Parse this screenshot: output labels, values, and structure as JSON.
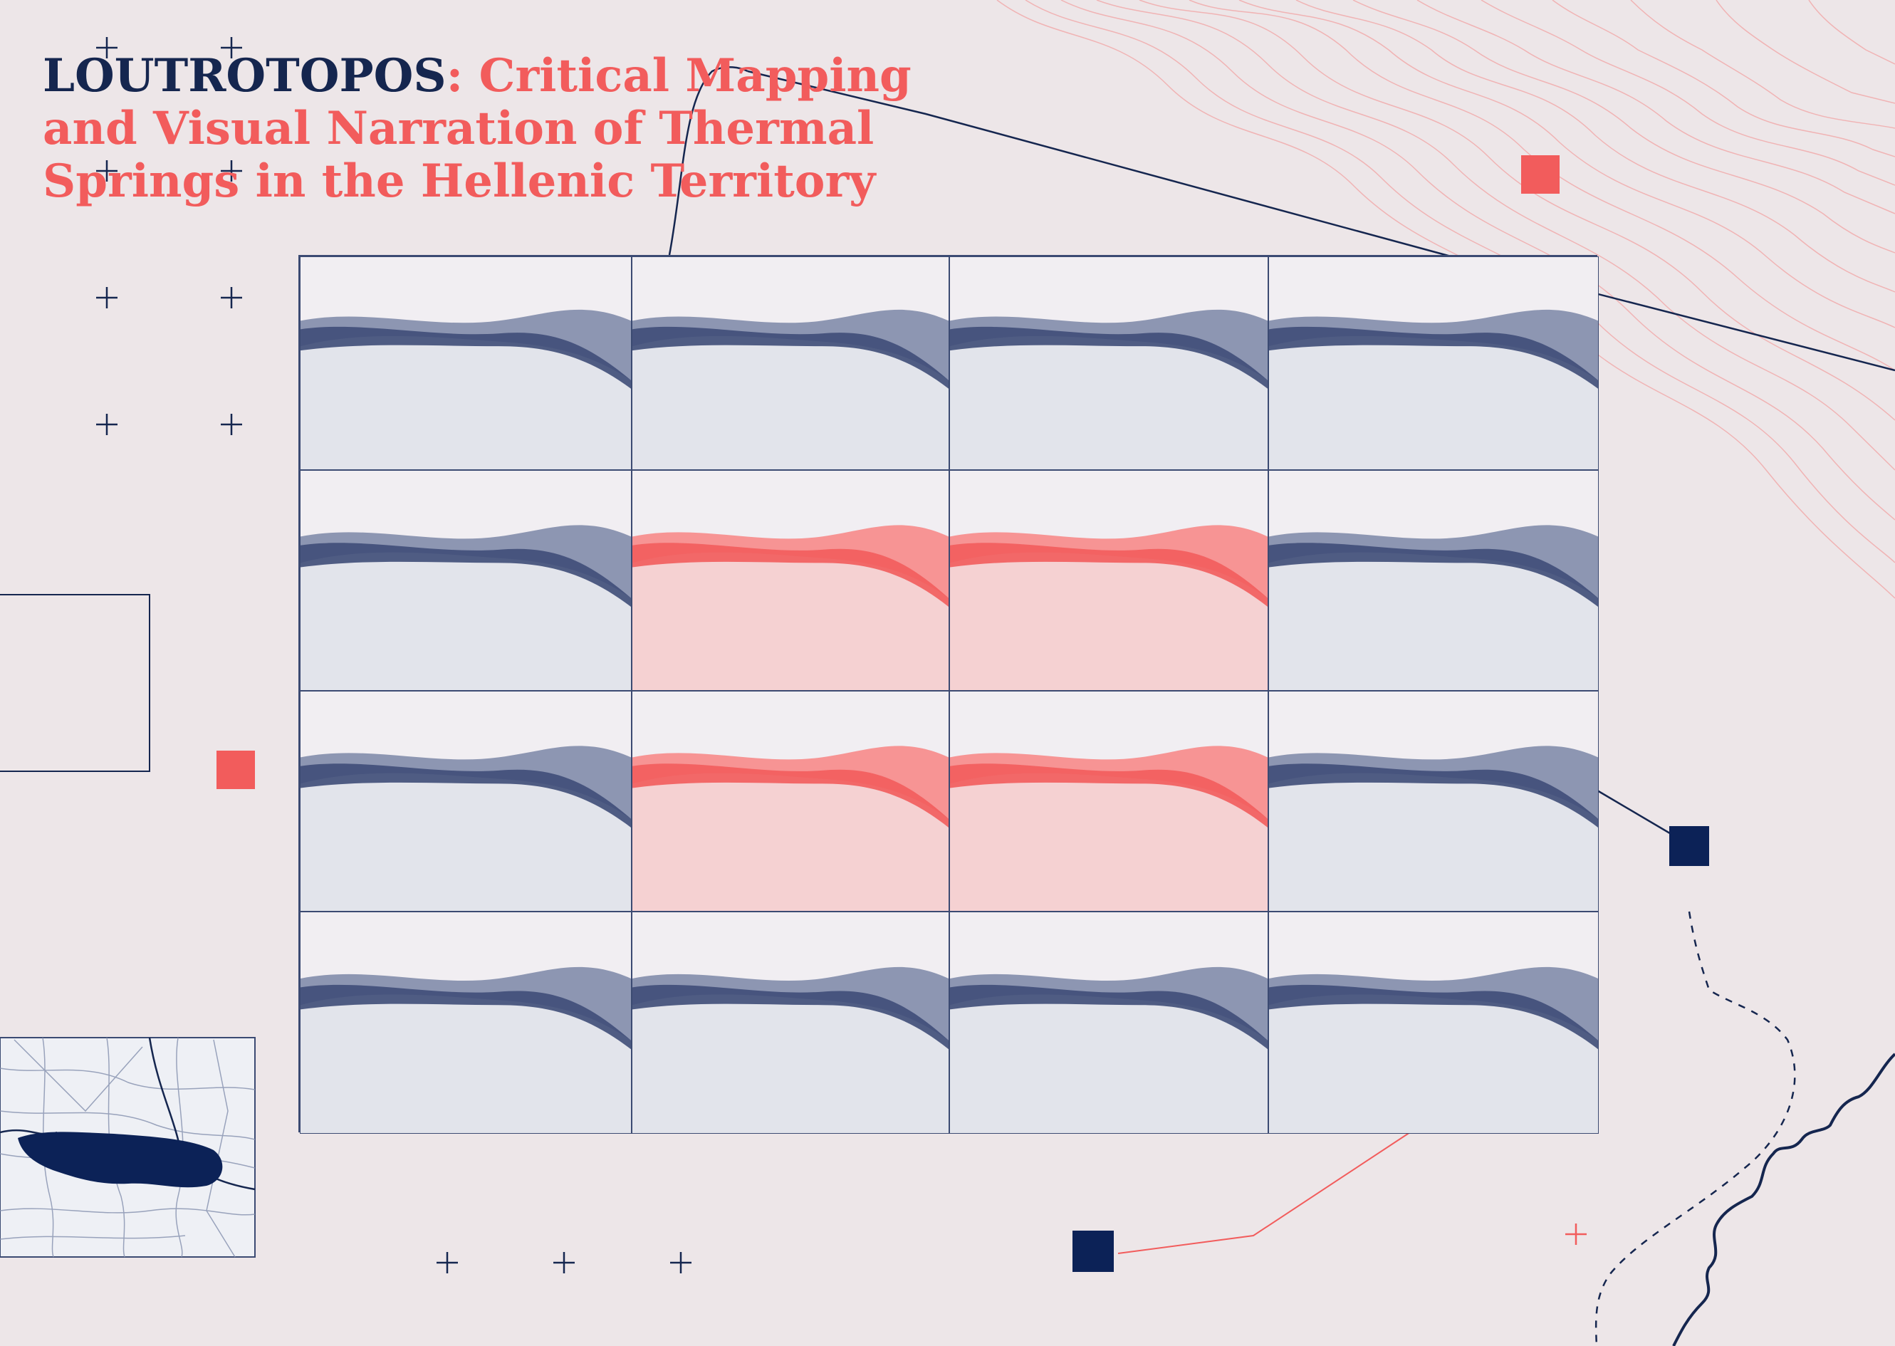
{
  "title": {
    "lead": "LOUTROTOPOS",
    "rest": ": Critical Mapping and Visual Narration of Thermal Springs in the Hellenic Territory"
  },
  "colors": {
    "background": "#ede6e8",
    "navy": "#15264f",
    "coral": "#f25c5c"
  },
  "tiles": [
    {
      "id": "r1c1",
      "tone": "navy"
    },
    {
      "id": "r1c2",
      "tone": "navy"
    },
    {
      "id": "r1c3",
      "tone": "navy"
    },
    {
      "id": "r1c4",
      "tone": "navy"
    },
    {
      "id": "r2c1",
      "tone": "navy"
    },
    {
      "id": "r2c2",
      "tone": "coral"
    },
    {
      "id": "r2c3",
      "tone": "coral"
    },
    {
      "id": "r2c4",
      "tone": "navy"
    },
    {
      "id": "r3c1",
      "tone": "navy"
    },
    {
      "id": "r3c2",
      "tone": "coral"
    },
    {
      "id": "r3c3",
      "tone": "coral"
    },
    {
      "id": "r3c4",
      "tone": "navy"
    },
    {
      "id": "r4c1",
      "tone": "navy"
    },
    {
      "id": "r4c2",
      "tone": "navy"
    },
    {
      "id": "r4c3",
      "tone": "navy"
    },
    {
      "id": "r4c4",
      "tone": "navy"
    }
  ],
  "icons": [
    "plus-marker-icon",
    "square-marker-icon",
    "lake-map-icon",
    "river-line-icon",
    "contour-lines-icon"
  ]
}
